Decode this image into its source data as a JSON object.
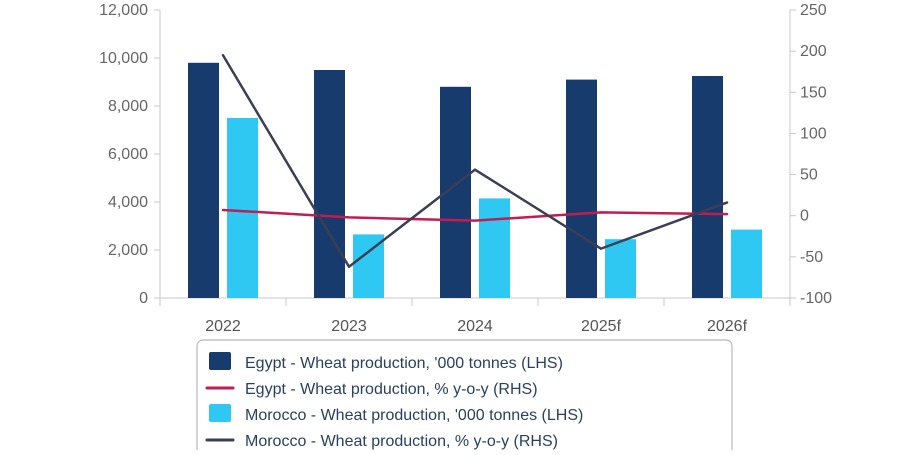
{
  "chart_data": {
    "type": "bar",
    "categories": [
      "2022",
      "2023",
      "2024",
      "2025f",
      "2026f"
    ],
    "series": [
      {
        "name": "Egypt - Wheat production, '000 tonnes (LHS)",
        "kind": "bar",
        "axis": "left",
        "color": "#173b6c",
        "values": [
          9800,
          9500,
          8800,
          9100,
          9250
        ]
      },
      {
        "name": "Egypt - Wheat production, % y-o-y (RHS)",
        "kind": "line",
        "axis": "right",
        "color": "#c41b50",
        "values": [
          7,
          -2,
          -6,
          4,
          2
        ]
      },
      {
        "name": "Morocco - Wheat production, '000 tonnes (LHS)",
        "kind": "bar",
        "axis": "left",
        "color": "#2ec8f2",
        "values": [
          7500,
          2650,
          4150,
          2450,
          2850
        ]
      },
      {
        "name": "Morocco - Wheat production, % y-o-y (RHS)",
        "kind": "line",
        "axis": "right",
        "color": "#3a3f55",
        "values": [
          195,
          -62,
          56,
          -40,
          16
        ]
      }
    ],
    "left_axis": {
      "ylim": [
        0,
        12000
      ],
      "ticks": [
        0,
        2000,
        4000,
        6000,
        8000,
        10000,
        12000
      ],
      "tick_labels": [
        "0",
        "2,000",
        "4,000",
        "6,000",
        "8,000",
        "10,000",
        "12,000"
      ]
    },
    "right_axis": {
      "ylim": [
        -100,
        250
      ],
      "ticks": [
        -100,
        -50,
        0,
        50,
        100,
        150,
        200,
        250
      ],
      "tick_labels": [
        "-100",
        "-50",
        "0",
        "50",
        "100",
        "150",
        "200",
        "250"
      ]
    },
    "legend_position": "bottom",
    "grid": false
  }
}
